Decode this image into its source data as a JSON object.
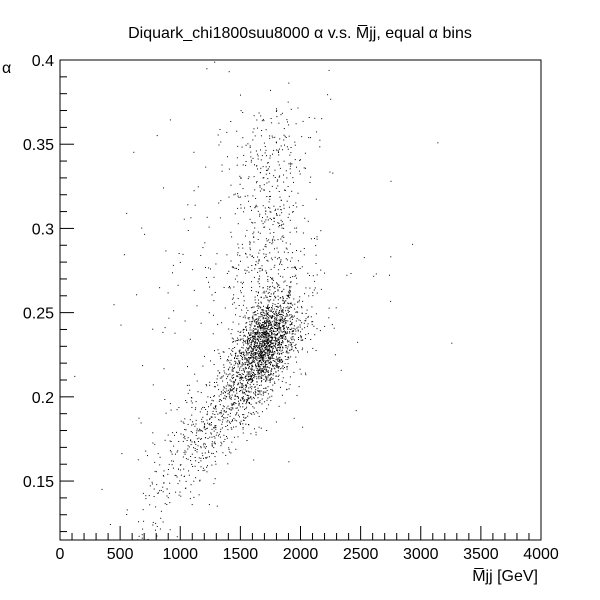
{
  "chart_data": {
    "type": "scatter",
    "title": "Diquark_chi1800suu8000 α v.s. M̅jj, equal α bins",
    "xlabel": "M̅jj [GeV]",
    "ylabel": "α",
    "xlim": [
      0,
      4000
    ],
    "ylim": [
      0.115,
      0.4
    ],
    "x_ticks": [
      0,
      500,
      1000,
      1500,
      2000,
      2500,
      3000,
      3500,
      4000
    ],
    "x_tick_labels": [
      "0",
      "500",
      "1000",
      "1500",
      "2000",
      "2500",
      "3000",
      "3500",
      "4000"
    ],
    "y_ticks": [
      0.15,
      0.2,
      0.25,
      0.3,
      0.35,
      0.4
    ],
    "y_tick_labels": [
      "0.15",
      "0.2",
      "0.25",
      "0.3",
      "0.35",
      "0.4"
    ],
    "grid": false,
    "legend": "none",
    "point_color": "#000000",
    "density_clusters": [
      {
        "x_center": 1700,
        "y_center": 0.232,
        "x_spread": 130,
        "y_spread": 0.014,
        "count": 1400,
        "correlation": 0.5
      },
      {
        "x_center": 1550,
        "y_center": 0.21,
        "x_spread": 260,
        "y_spread": 0.022,
        "count": 700,
        "correlation": 0.75
      },
      {
        "x_center": 1700,
        "y_center": 0.285,
        "x_spread": 150,
        "y_spread": 0.035,
        "count": 450,
        "correlation": 0.2
      },
      {
        "x_center": 1150,
        "y_center": 0.17,
        "x_spread": 250,
        "y_spread": 0.025,
        "count": 300,
        "correlation": 0.8
      },
      {
        "x_center": 1500,
        "y_center": 0.27,
        "x_spread": 550,
        "y_spread": 0.055,
        "count": 260,
        "correlation": 0.3
      },
      {
        "x_center": 1750,
        "y_center": 0.345,
        "x_spread": 180,
        "y_spread": 0.015,
        "count": 120,
        "correlation": 0.0
      }
    ]
  }
}
